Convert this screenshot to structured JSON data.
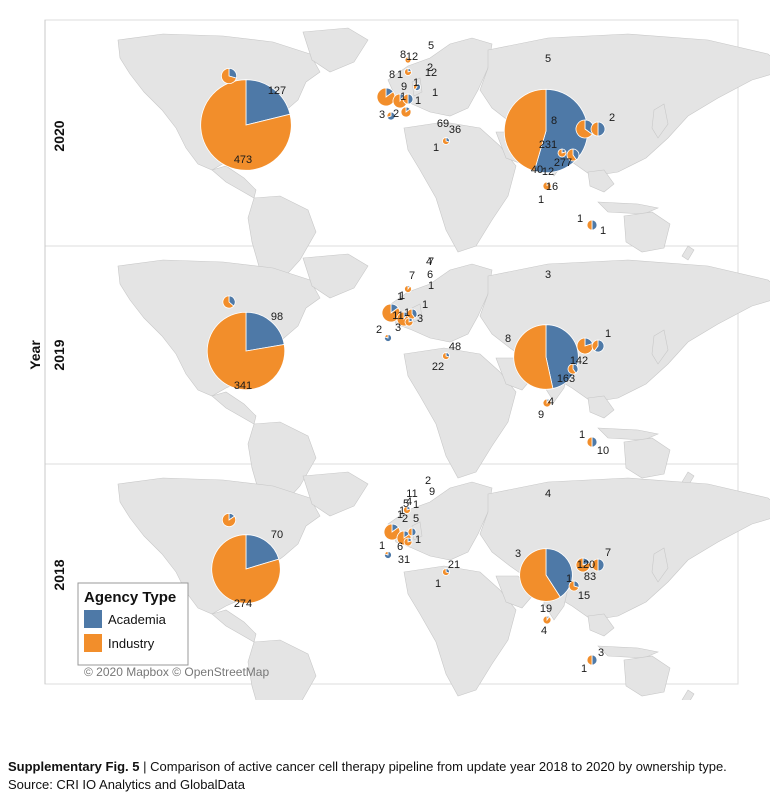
{
  "axis": {
    "label": "Year"
  },
  "legend": {
    "title": "Agency Type",
    "items": [
      {
        "label": "Academia",
        "color": "#4e79a7"
      },
      {
        "label": "Industry",
        "color": "#f28e2b"
      }
    ]
  },
  "attribution": "© 2020 Mapbox © OpenStreetMap",
  "caption": {
    "label": "Supplementary Fig. 5",
    "separator": "|",
    "text": "Comparison of active cancer cell therapy pipeline from update year 2018 to 2020 by ownership type. Source: CRI IO Analytics and GlobalData"
  },
  "chart_data": {
    "type": "map-pie",
    "colors": {
      "Academia": "#4e79a7",
      "Industry": "#f28e2b"
    },
    "panels": [
      {
        "year": "2020",
        "pies": [
          {
            "region": "USA",
            "academia": 127,
            "industry": 473
          },
          {
            "region": "China",
            "academia": 277,
            "industry": 231
          },
          {
            "region": "Canada",
            "academia": 5,
            "industry": 12
          }
        ],
        "labels": [
          "127",
          "473",
          "5",
          "12",
          "2",
          "1",
          "1",
          "1",
          "9",
          "1",
          "1",
          "3",
          "2",
          "69",
          "36",
          "1",
          "5",
          "8",
          "2",
          "231",
          "277",
          "12",
          "40",
          "16",
          "1",
          "1",
          "1",
          "12",
          "8",
          "8"
        ]
      },
      {
        "year": "2019",
        "pies": [
          {
            "region": "USA",
            "academia": 98,
            "industry": 341
          },
          {
            "region": "China",
            "academia": 142,
            "industry": 163
          },
          {
            "region": "Canada",
            "academia": 4,
            "industry": 7
          }
        ],
        "labels": [
          "98",
          "341",
          "4",
          "7",
          "1",
          "1",
          "1",
          "1",
          "11",
          "1",
          "3",
          "2",
          "3",
          "48",
          "22",
          "3",
          "8",
          "1",
          "142",
          "163",
          "4",
          "9",
          "1",
          "10",
          "6",
          "7"
        ]
      },
      {
        "year": "2018",
        "pies": [
          {
            "region": "USA",
            "academia": 70,
            "industry": 274
          },
          {
            "region": "China",
            "academia": 83,
            "industry": 120
          },
          {
            "region": "Canada",
            "academia": 2,
            "industry": 11
          }
        ],
        "labels": [
          "70",
          "274",
          "2",
          "11",
          "1",
          "1",
          "1",
          "2",
          "5",
          "1",
          "6",
          "1",
          "31",
          "21",
          "1",
          "4",
          "3",
          "7",
          "1",
          "83",
          "120",
          "15",
          "19",
          "4",
          "3",
          "1",
          "9",
          "4",
          "5"
        ]
      }
    ]
  }
}
